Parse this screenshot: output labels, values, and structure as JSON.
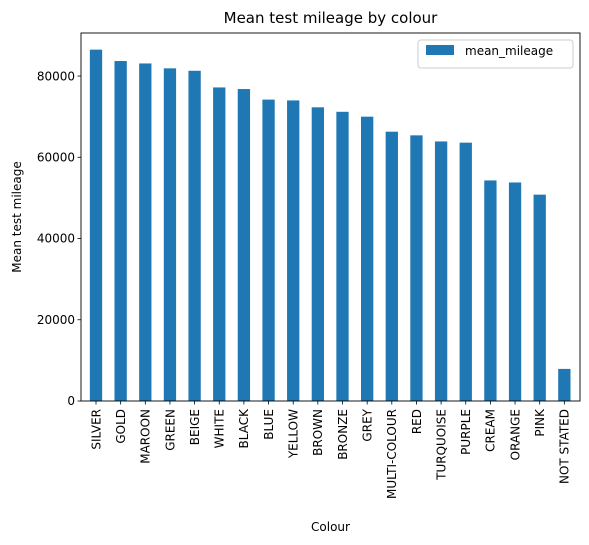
{
  "chart_data": {
    "type": "bar",
    "title": "Mean test mileage by colour",
    "xlabel": "Colour",
    "ylabel": "Mean test mileage",
    "ylim": [
      0,
      90600
    ],
    "yticks": [
      0,
      20000,
      40000,
      60000,
      80000
    ],
    "grid": false,
    "legend_position": "top-right",
    "bar_color": "#1f77b4",
    "categories": [
      "SILVER",
      "GOLD",
      "MAROON",
      "GREEN",
      "BEIGE",
      "WHITE",
      "BLACK",
      "BLUE",
      "YELLOW",
      "BROWN",
      "BRONZE",
      "GREY",
      "MULTI-COLOUR",
      "RED",
      "TURQUOISE",
      "PURPLE",
      "CREAM",
      "ORANGE",
      "PINK",
      "NOT STATED"
    ],
    "series": [
      {
        "name": "mean_mileage",
        "values": [
          86500,
          83700,
          83100,
          81900,
          81300,
          77200,
          76800,
          74200,
          74000,
          72300,
          71200,
          70000,
          66300,
          65400,
          63900,
          63600,
          54300,
          53800,
          50800,
          7900
        ]
      }
    ]
  }
}
